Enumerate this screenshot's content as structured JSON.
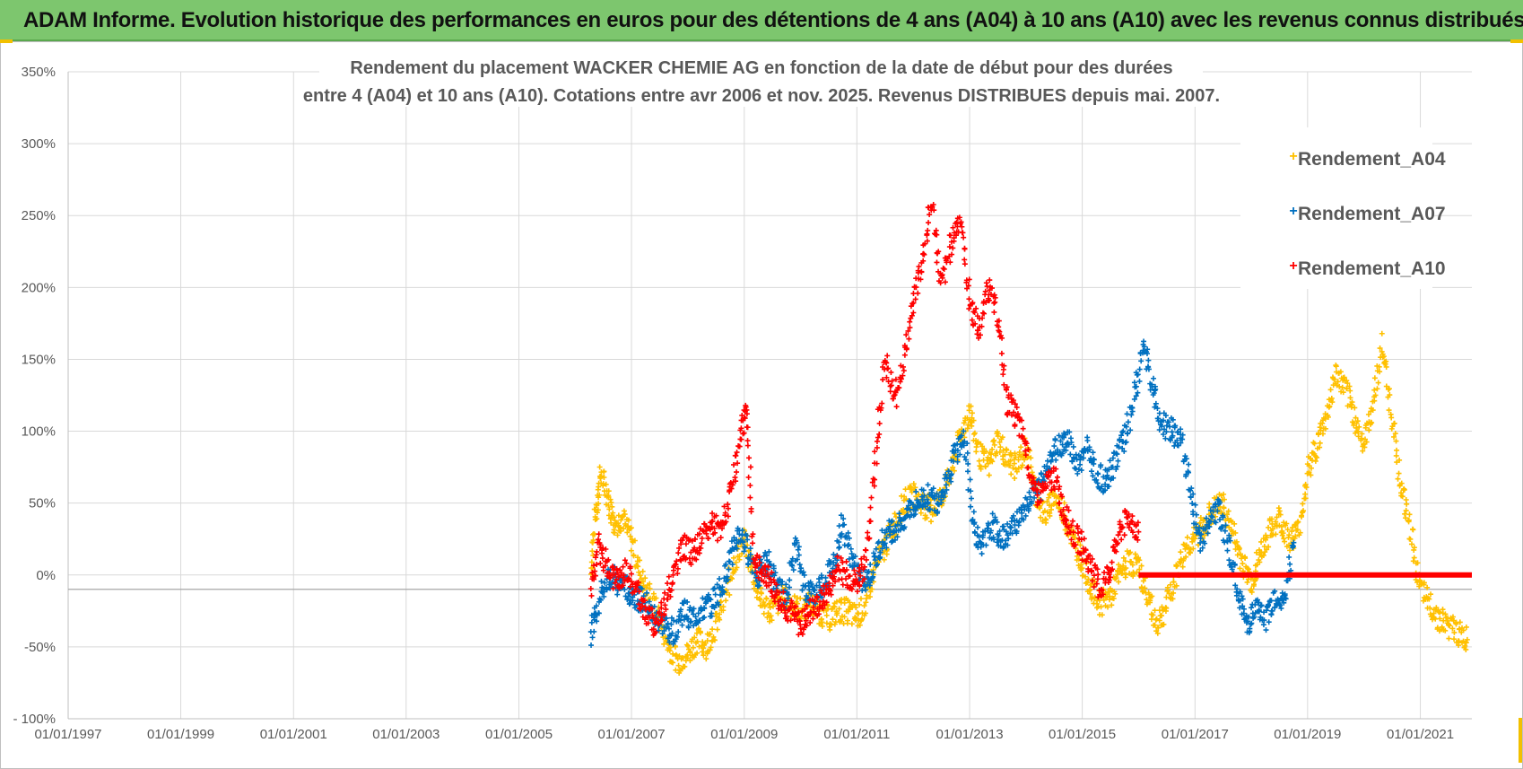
{
  "header": {
    "title": "ADAM Informe. Evolution historique des performances en euros pour des détentions de 4 ans (A04) à 10 ans (A10) avec les revenus connus distribués"
  },
  "colors": {
    "banner": "#7dc66e",
    "A04": "#ffc000",
    "A07": "#0070c0",
    "A10": "#ff0000",
    "zero_line": "#ff0000",
    "grid": "#d9d9d9",
    "text": "#595959"
  },
  "chart_data": {
    "type": "scatter",
    "title_lines": [
      "Rendement du placement WACKER CHEMIE AG en fonction de la date de début pour des durées",
      "entre 4 (A04) et 10 ans (A10).  Cotations entre avr 2006 et nov. 2025.  Revenus DISTRIBUES depuis mai. 2007."
    ],
    "xlabel": "",
    "ylabel": "",
    "x_range": [
      "1997-01-01",
      "2021-12-01"
    ],
    "y_range": [
      -100,
      350
    ],
    "x_tick_labels": [
      "01/01/1997",
      "01/01/1999",
      "01/01/2001",
      "01/01/2003",
      "01/01/2005",
      "01/01/2007",
      "01/01/2009",
      "01/01/2011",
      "01/01/2013",
      "01/01/2015",
      "01/01/2017",
      "01/01/2019",
      "01/01/2021"
    ],
    "x_ticks": [
      "1997-01-01",
      "1999-01-01",
      "2001-01-01",
      "2003-01-01",
      "2005-01-01",
      "2007-01-01",
      "2009-01-01",
      "2011-01-01",
      "2013-01-01",
      "2015-01-01",
      "2017-01-01",
      "2019-01-01",
      "2021-01-01"
    ],
    "y_tick_labels": [
      "350%",
      "300%",
      "250%",
      "200%",
      "150%",
      "100%",
      "50%",
      "0%",
      "-50%",
      "- 100%"
    ],
    "y_ticks": [
      350,
      300,
      250,
      200,
      150,
      100,
      50,
      0,
      -50,
      -100
    ],
    "grid": true,
    "legend_position": "top-right",
    "series": [
      {
        "name": "Rendement_A04",
        "marker": "+",
        "points": [
          [
            "2006-04-15",
            5
          ],
          [
            "2006-05-15",
            45
          ],
          [
            "2006-06-15",
            70
          ],
          [
            "2006-08-01",
            55
          ],
          [
            "2006-09-15",
            35
          ],
          [
            "2006-11-01",
            40
          ],
          [
            "2007-01-01",
            25
          ],
          [
            "2007-03-01",
            0
          ],
          [
            "2007-05-01",
            -15
          ],
          [
            "2007-07-01",
            -30
          ],
          [
            "2007-09-01",
            -50
          ],
          [
            "2007-11-01",
            -60
          ],
          [
            "2008-01-01",
            -55
          ],
          [
            "2008-03-01",
            -45
          ],
          [
            "2008-05-01",
            -50
          ],
          [
            "2008-07-01",
            -35
          ],
          [
            "2008-09-01",
            -15
          ],
          [
            "2008-11-01",
            10
          ],
          [
            "2009-01-01",
            25
          ],
          [
            "2009-03-01",
            0
          ],
          [
            "2009-05-01",
            -20
          ],
          [
            "2009-07-01",
            -25
          ],
          [
            "2009-09-01",
            -15
          ],
          [
            "2009-11-01",
            -20
          ],
          [
            "2010-01-01",
            -25
          ],
          [
            "2010-03-01",
            -20
          ],
          [
            "2010-05-01",
            -25
          ],
          [
            "2010-07-01",
            -30
          ],
          [
            "2010-09-01",
            -25
          ],
          [
            "2010-11-01",
            -25
          ],
          [
            "2011-01-01",
            -30
          ],
          [
            "2011-03-01",
            -20
          ],
          [
            "2011-05-01",
            5
          ],
          [
            "2011-07-01",
            20
          ],
          [
            "2011-09-01",
            35
          ],
          [
            "2011-11-01",
            50
          ],
          [
            "2012-01-01",
            55
          ],
          [
            "2012-03-01",
            50
          ],
          [
            "2012-05-01",
            45
          ],
          [
            "2012-07-01",
            55
          ],
          [
            "2012-09-01",
            70
          ],
          [
            "2012-11-01",
            95
          ],
          [
            "2013-01-01",
            115
          ],
          [
            "2013-03-01",
            85
          ],
          [
            "2013-05-01",
            75
          ],
          [
            "2013-07-01",
            95
          ],
          [
            "2013-09-01",
            80
          ],
          [
            "2013-11-01",
            75
          ],
          [
            "2014-01-01",
            90
          ],
          [
            "2014-03-01",
            60
          ],
          [
            "2014-05-01",
            40
          ],
          [
            "2014-07-01",
            55
          ],
          [
            "2014-09-01",
            45
          ],
          [
            "2014-11-01",
            25
          ],
          [
            "2015-01-01",
            10
          ],
          [
            "2015-03-01",
            -10
          ],
          [
            "2015-05-01",
            -20
          ],
          [
            "2015-07-01",
            -15
          ],
          [
            "2015-09-01",
            0
          ],
          [
            "2015-11-01",
            10
          ],
          [
            "2016-01-01",
            5
          ],
          [
            "2016-03-01",
            -15
          ],
          [
            "2016-05-01",
            -35
          ],
          [
            "2016-07-01",
            -20
          ],
          [
            "2016-09-01",
            0
          ],
          [
            "2016-11-01",
            20
          ],
          [
            "2017-01-01",
            25
          ],
          [
            "2017-03-01",
            35
          ],
          [
            "2017-05-01",
            45
          ],
          [
            "2017-07-01",
            50
          ],
          [
            "2017-09-01",
            30
          ],
          [
            "2017-11-01",
            10
          ],
          [
            "2018-01-01",
            -5
          ],
          [
            "2018-03-01",
            15
          ],
          [
            "2018-05-01",
            30
          ],
          [
            "2018-07-01",
            40
          ],
          [
            "2018-09-01",
            25
          ],
          [
            "2018-11-01",
            30
          ],
          [
            "2019-01-01",
            70
          ],
          [
            "2019-03-01",
            90
          ],
          [
            "2019-05-01",
            110
          ],
          [
            "2019-07-01",
            140
          ],
          [
            "2019-09-01",
            130
          ],
          [
            "2019-11-01",
            110
          ],
          [
            "2020-01-01",
            90
          ],
          [
            "2020-03-01",
            120
          ],
          [
            "2020-05-01",
            160
          ],
          [
            "2020-07-01",
            110
          ],
          [
            "2020-09-01",
            60
          ],
          [
            "2020-11-01",
            30
          ],
          [
            "2021-01-01",
            -10
          ],
          [
            "2021-03-01",
            -20
          ],
          [
            "2021-05-01",
            -30
          ],
          [
            "2021-07-01",
            -35
          ],
          [
            "2021-09-01",
            -40
          ],
          [
            "2021-11-01",
            -45
          ]
        ]
      },
      {
        "name": "Rendement_A07",
        "marker": "+",
        "points": [
          [
            "2006-04-15",
            -40
          ],
          [
            "2006-06-01",
            -20
          ],
          [
            "2006-08-01",
            0
          ],
          [
            "2006-10-01",
            -5
          ],
          [
            "2006-12-01",
            -10
          ],
          [
            "2007-02-01",
            -15
          ],
          [
            "2007-04-01",
            -20
          ],
          [
            "2007-06-01",
            -30
          ],
          [
            "2007-08-01",
            -35
          ],
          [
            "2007-10-01",
            -40
          ],
          [
            "2007-12-01",
            -25
          ],
          [
            "2008-02-01",
            -30
          ],
          [
            "2008-04-01",
            -25
          ],
          [
            "2008-06-01",
            -20
          ],
          [
            "2008-08-01",
            -10
          ],
          [
            "2008-10-01",
            10
          ],
          [
            "2008-12-01",
            30
          ],
          [
            "2009-02-01",
            15
          ],
          [
            "2009-04-01",
            0
          ],
          [
            "2009-06-01",
            10
          ],
          [
            "2009-08-01",
            -10
          ],
          [
            "2009-10-01",
            -15
          ],
          [
            "2009-12-01",
            20
          ],
          [
            "2010-02-01",
            -10
          ],
          [
            "2010-04-01",
            -15
          ],
          [
            "2010-06-01",
            -5
          ],
          [
            "2010-08-01",
            5
          ],
          [
            "2010-10-01",
            35
          ],
          [
            "2010-12-01",
            10
          ],
          [
            "2011-02-01",
            -5
          ],
          [
            "2011-04-01",
            0
          ],
          [
            "2011-06-01",
            20
          ],
          [
            "2011-08-01",
            30
          ],
          [
            "2011-10-01",
            35
          ],
          [
            "2011-12-01",
            45
          ],
          [
            "2012-02-01",
            50
          ],
          [
            "2012-04-01",
            55
          ],
          [
            "2012-06-01",
            50
          ],
          [
            "2012-08-01",
            65
          ],
          [
            "2012-10-01",
            85
          ],
          [
            "2012-12-01",
            95
          ],
          [
            "2013-02-01",
            30
          ],
          [
            "2013-04-01",
            20
          ],
          [
            "2013-06-01",
            35
          ],
          [
            "2013-08-01",
            25
          ],
          [
            "2013-10-01",
            30
          ],
          [
            "2013-12-01",
            45
          ],
          [
            "2014-02-01",
            55
          ],
          [
            "2014-04-01",
            60
          ],
          [
            "2014-06-01",
            80
          ],
          [
            "2014-08-01",
            90
          ],
          [
            "2014-10-01",
            95
          ],
          [
            "2014-12-01",
            75
          ],
          [
            "2015-02-01",
            90
          ],
          [
            "2015-04-01",
            70
          ],
          [
            "2015-06-01",
            65
          ],
          [
            "2015-08-01",
            80
          ],
          [
            "2015-10-01",
            95
          ],
          [
            "2015-12-01",
            120
          ],
          [
            "2016-02-01",
            160
          ],
          [
            "2016-04-01",
            130
          ],
          [
            "2016-06-01",
            105
          ],
          [
            "2016-08-01",
            100
          ],
          [
            "2016-10-01",
            95
          ],
          [
            "2016-12-01",
            60
          ],
          [
            "2017-02-01",
            20
          ],
          [
            "2017-04-01",
            35
          ],
          [
            "2017-06-01",
            45
          ],
          [
            "2017-08-01",
            25
          ],
          [
            "2017-10-01",
            -10
          ],
          [
            "2017-12-01",
            -35
          ],
          [
            "2018-02-01",
            -25
          ],
          [
            "2018-04-01",
            -30
          ],
          [
            "2018-06-01",
            -15
          ],
          [
            "2018-08-01",
            -20
          ],
          [
            "2018-10-01",
            20
          ]
        ]
      },
      {
        "name": "Rendement_A10",
        "marker": "+",
        "points": [
          [
            "2006-04-15",
            -10
          ],
          [
            "2006-06-01",
            20
          ],
          [
            "2006-08-01",
            5
          ],
          [
            "2006-10-01",
            -5
          ],
          [
            "2006-12-01",
            5
          ],
          [
            "2007-02-01",
            -10
          ],
          [
            "2007-04-01",
            -25
          ],
          [
            "2007-06-01",
            -35
          ],
          [
            "2007-08-01",
            -20
          ],
          [
            "2007-10-01",
            0
          ],
          [
            "2007-12-01",
            20
          ],
          [
            "2008-02-01",
            15
          ],
          [
            "2008-04-01",
            25
          ],
          [
            "2008-06-01",
            35
          ],
          [
            "2008-08-01",
            30
          ],
          [
            "2008-10-01",
            55
          ],
          [
            "2008-12-01",
            90
          ],
          [
            "2009-01-15",
            120
          ],
          [
            "2009-03-01",
            15
          ],
          [
            "2009-05-01",
            0
          ],
          [
            "2009-07-01",
            -5
          ],
          [
            "2009-09-01",
            -20
          ],
          [
            "2009-11-01",
            -25
          ],
          [
            "2010-01-01",
            -35
          ],
          [
            "2010-03-01",
            -25
          ],
          [
            "2010-05-01",
            -20
          ],
          [
            "2010-07-01",
            -10
          ],
          [
            "2010-09-01",
            5
          ],
          [
            "2010-11-01",
            0
          ],
          [
            "2011-01-01",
            -5
          ],
          [
            "2011-03-01",
            10
          ],
          [
            "2011-05-01",
            80
          ],
          [
            "2011-07-01",
            150
          ],
          [
            "2011-09-01",
            120
          ],
          [
            "2011-11-01",
            150
          ],
          [
            "2012-01-01",
            190
          ],
          [
            "2012-03-01",
            220
          ],
          [
            "2012-05-01",
            260
          ],
          [
            "2012-07-01",
            200
          ],
          [
            "2012-09-01",
            230
          ],
          [
            "2012-11-01",
            250
          ],
          [
            "2013-01-01",
            190
          ],
          [
            "2013-03-01",
            170
          ],
          [
            "2013-05-01",
            200
          ],
          [
            "2013-07-01",
            180
          ],
          [
            "2013-09-01",
            120
          ],
          [
            "2013-11-01",
            110
          ],
          [
            "2014-01-01",
            90
          ],
          [
            "2014-03-01",
            55
          ],
          [
            "2014-05-01",
            60
          ],
          [
            "2014-07-01",
            70
          ],
          [
            "2014-09-01",
            45
          ],
          [
            "2014-11-01",
            30
          ],
          [
            "2015-01-01",
            20
          ],
          [
            "2015-03-01",
            5
          ],
          [
            "2015-05-01",
            -10
          ],
          [
            "2015-07-01",
            5
          ],
          [
            "2015-09-01",
            30
          ],
          [
            "2015-11-01",
            40
          ],
          [
            "2016-01-01",
            30
          ]
        ]
      }
    ],
    "reference_segment": {
      "x": [
        "2016-01-01",
        "2021-12-01"
      ],
      "y": 0
    }
  }
}
